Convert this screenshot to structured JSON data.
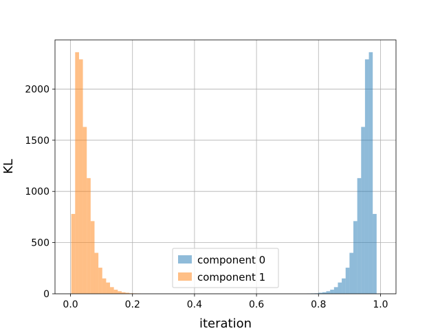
{
  "chart_data": {
    "type": "histogram",
    "xlabel": "iteration",
    "ylabel": "KL",
    "xlim": [
      -0.05,
      1.05
    ],
    "ylim": [
      0,
      2480
    ],
    "x_ticks": [
      "0.0",
      "0.2",
      "0.4",
      "0.6",
      "0.8",
      "1.0"
    ],
    "x_tick_values": [
      0.0,
      0.2,
      0.4,
      0.6,
      0.8,
      1.0
    ],
    "y_ticks": [
      "0",
      "500",
      "1000",
      "1500",
      "2000"
    ],
    "y_tick_values": [
      0,
      500,
      1000,
      1500,
      2000
    ],
    "grid": true,
    "legend_position": "lower center",
    "bin_width": 0.0125,
    "series": [
      {
        "name": "component 0",
        "color": "#1f77b4",
        "alpha": 0.5,
        "bins": [
          [
            0.7625,
            0.775,
            3
          ],
          [
            0.775,
            0.7875,
            4
          ],
          [
            0.7875,
            0.8,
            5
          ],
          [
            0.8,
            0.8125,
            10
          ],
          [
            0.8125,
            0.825,
            15
          ],
          [
            0.825,
            0.8375,
            25
          ],
          [
            0.8375,
            0.85,
            40
          ],
          [
            0.85,
            0.8625,
            65
          ],
          [
            0.8625,
            0.875,
            110
          ],
          [
            0.875,
            0.8875,
            150
          ],
          [
            0.8875,
            0.9,
            255
          ],
          [
            0.9,
            0.9125,
            400
          ],
          [
            0.9125,
            0.925,
            710
          ],
          [
            0.925,
            0.9375,
            1130
          ],
          [
            0.9375,
            0.95,
            1630
          ],
          [
            0.95,
            0.9625,
            2290
          ],
          [
            0.9625,
            0.975,
            2360
          ],
          [
            0.975,
            0.9875,
            780
          ]
        ]
      },
      {
        "name": "component 1",
        "color": "#ff7f0e",
        "alpha": 0.5,
        "bins": [
          [
            0.0025,
            0.015,
            780
          ],
          [
            0.015,
            0.0275,
            2360
          ],
          [
            0.0275,
            0.04,
            2290
          ],
          [
            0.04,
            0.0525,
            1630
          ],
          [
            0.0525,
            0.065,
            1130
          ],
          [
            0.065,
            0.0775,
            710
          ],
          [
            0.0775,
            0.09,
            400
          ],
          [
            0.09,
            0.1025,
            255
          ],
          [
            0.1025,
            0.115,
            150
          ],
          [
            0.115,
            0.1275,
            110
          ],
          [
            0.1275,
            0.14,
            65
          ],
          [
            0.14,
            0.1525,
            40
          ],
          [
            0.1525,
            0.165,
            25
          ],
          [
            0.165,
            0.1775,
            15
          ],
          [
            0.1775,
            0.19,
            10
          ],
          [
            0.19,
            0.2025,
            5
          ],
          [
            0.2025,
            0.215,
            4
          ],
          [
            0.215,
            0.2275,
            3
          ]
        ]
      }
    ]
  }
}
